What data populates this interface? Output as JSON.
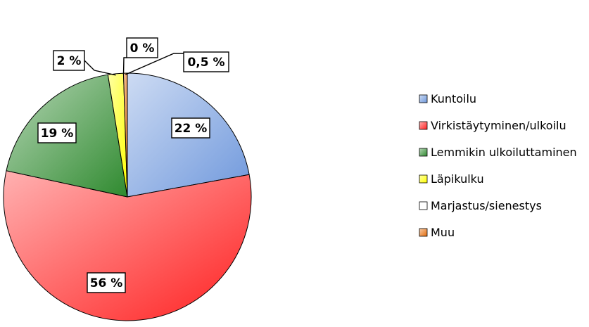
{
  "chart_data": {
    "type": "pie",
    "categories": [
      "Kuntoilu",
      "Virkistäytyminen/ulkoilu",
      "Lemmikin ulkoiluttaminen",
      "Läpikulku",
      "Marjastus/sienestys",
      "Muu"
    ],
    "values": [
      22,
      56,
      19,
      2,
      0,
      0.5
    ],
    "labels": [
      "22 %",
      "56 %",
      "19 %",
      "2 %",
      "0 %",
      "0,5 %"
    ],
    "colors": [
      "#6f98dc",
      "#ff2020",
      "#2f8a2f",
      "#ffff00",
      "#ffffff",
      "#e46c0a"
    ],
    "legend_position": "right"
  }
}
